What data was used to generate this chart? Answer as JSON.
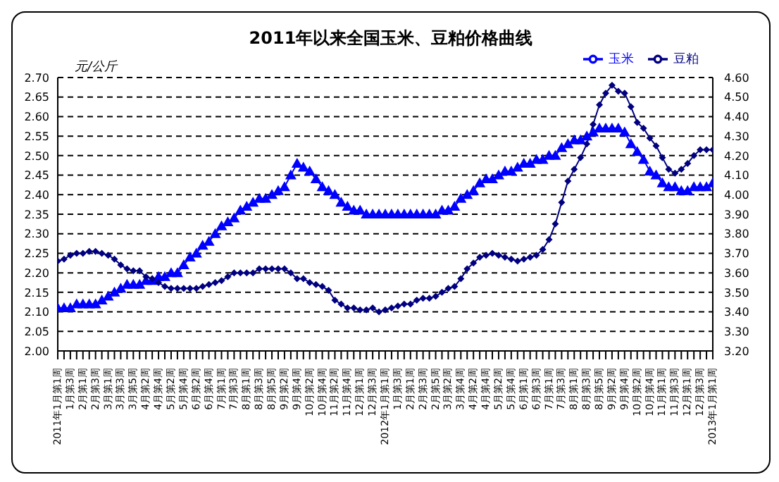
{
  "chart_data": {
    "type": "line",
    "title": "2011年以来全国玉米、豆粕价格曲线",
    "ylabel": "元/公斤",
    "categories": [
      "2011年1月第1周",
      null,
      "1月第3周",
      null,
      "2月第1周",
      null,
      "2月第3周",
      null,
      "3月第1周",
      null,
      "3月第3周",
      null,
      "3月第5周",
      null,
      "4月第2周",
      null,
      "4月第4周",
      null,
      "5月第2周",
      null,
      "5月第4周",
      null,
      "6月第2周",
      null,
      "6月第4周",
      null,
      "7月第1周",
      null,
      "7月第3周",
      null,
      "8月第1周",
      null,
      "8月第3周",
      null,
      "8月第5周",
      null,
      "9月第2周",
      null,
      "9月第4周",
      null,
      "10月第2周",
      null,
      "10月第4周",
      null,
      "11月第2周",
      null,
      "11月第4周",
      null,
      "12月第1周",
      null,
      "12月第3周",
      null,
      "2012年1月第1周",
      null,
      "1月第3周",
      null,
      "2月第1周",
      null,
      "2月第3周",
      null,
      "2月第5周",
      null,
      "3月第2周",
      null,
      "3月第4周",
      null,
      "4月第2周",
      null,
      "4月第4周",
      null,
      "5月第2周",
      null,
      "5月第4周",
      null,
      "6月第1周",
      null,
      "6月第3周",
      null,
      "7月第1周",
      null,
      "7月第3周",
      null,
      "8月第1周",
      null,
      "8月第3周",
      null,
      "8月第5周",
      null,
      "9月第2周",
      null,
      "9月第4周",
      null,
      "10月第2周",
      null,
      "10月第4周",
      null,
      "11月第1周",
      null,
      "11月第3周",
      null,
      "12月第1周",
      null,
      "12月第3周",
      null,
      "2013年1月第1周"
    ],
    "series": [
      {
        "name": "玉米",
        "color": "#0000ff",
        "marker": "triangle",
        "values": [
          2.11,
          2.11,
          2.11,
          2.12,
          2.12,
          2.12,
          2.12,
          2.13,
          2.14,
          2.15,
          2.16,
          2.17,
          2.17,
          2.17,
          2.18,
          2.18,
          2.19,
          2.19,
          2.2,
          2.2,
          2.22,
          2.24,
          2.25,
          2.27,
          2.28,
          2.3,
          2.32,
          2.33,
          2.34,
          2.36,
          2.37,
          2.38,
          2.39,
          2.39,
          2.4,
          2.41,
          2.42,
          2.45,
          2.48,
          2.47,
          2.46,
          2.44,
          2.42,
          2.41,
          2.4,
          2.38,
          2.37,
          2.36,
          2.36,
          2.35,
          2.35,
          2.35,
          2.35,
          2.35,
          2.35,
          2.35,
          2.35,
          2.35,
          2.35,
          2.35,
          2.35,
          2.36,
          2.36,
          2.37,
          2.39,
          2.4,
          2.41,
          2.43,
          2.44,
          2.44,
          2.45,
          2.46,
          2.46,
          2.47,
          2.48,
          2.48,
          2.49,
          2.49,
          2.5,
          2.5,
          2.52,
          2.53,
          2.54,
          2.54,
          2.55,
          2.56,
          2.57,
          2.57,
          2.57,
          2.57,
          2.56,
          2.53,
          2.51,
          2.49,
          2.46,
          2.45,
          2.43,
          2.42,
          2.42,
          2.41,
          2.41,
          2.42,
          2.42,
          2.42,
          2.43
        ]
      },
      {
        "name": "豆粕",
        "color": "#000080",
        "marker": "diamond",
        "axis": "y2",
        "values": [
          3.66,
          3.67,
          3.69,
          3.7,
          3.7,
          3.71,
          3.71,
          3.7,
          3.69,
          3.67,
          3.64,
          3.62,
          3.61,
          3.61,
          3.58,
          3.57,
          3.55,
          3.53,
          3.52,
          3.52,
          3.52,
          3.52,
          3.52,
          3.53,
          3.54,
          3.55,
          3.56,
          3.58,
          3.6,
          3.6,
          3.6,
          3.6,
          3.62,
          3.62,
          3.62,
          3.62,
          3.62,
          3.6,
          3.57,
          3.57,
          3.55,
          3.54,
          3.53,
          3.51,
          3.46,
          3.44,
          3.42,
          3.42,
          3.41,
          3.41,
          3.42,
          3.4,
          3.41,
          3.42,
          3.43,
          3.44,
          3.44,
          3.46,
          3.47,
          3.47,
          3.48,
          3.5,
          3.52,
          3.53,
          3.57,
          3.62,
          3.65,
          3.68,
          3.69,
          3.7,
          3.69,
          3.68,
          3.67,
          3.66,
          3.67,
          3.68,
          3.69,
          3.72,
          3.77,
          3.85,
          3.96,
          4.07,
          4.13,
          4.19,
          4.26,
          4.36,
          4.46,
          4.52,
          4.56,
          4.53,
          4.52,
          4.45,
          4.37,
          4.34,
          4.29,
          4.25,
          4.19,
          4.13,
          4.11,
          4.13,
          4.16,
          4.2,
          4.23,
          4.23,
          4.23
        ]
      }
    ],
    "ylim": [
      2.0,
      2.7
    ],
    "yticks": [
      {
        "value": 2.0,
        "label": "2.00"
      },
      {
        "value": 2.05,
        "label": "2.05"
      },
      {
        "value": 2.1,
        "label": "2.10"
      },
      {
        "value": 2.15,
        "label": "2.15"
      },
      {
        "value": 2.2,
        "label": "2.20"
      },
      {
        "value": 2.25,
        "label": "2.25"
      },
      {
        "value": 2.3,
        "label": "2.30"
      },
      {
        "value": 2.35,
        "label": "2.35"
      },
      {
        "value": 2.4,
        "label": "2.40"
      },
      {
        "value": 2.45,
        "label": "2.45"
      },
      {
        "value": 2.5,
        "label": "2.50"
      },
      {
        "value": 2.55,
        "label": "2.55"
      },
      {
        "value": 2.6,
        "label": "2.60"
      },
      {
        "value": 2.65,
        "label": "2.65"
      },
      {
        "value": 2.7,
        "label": "2.70"
      }
    ],
    "y2lim": [
      3.2,
      4.6
    ],
    "y2ticks": [
      {
        "value": 3.2,
        "label": "3.20"
      },
      {
        "value": 3.3,
        "label": "3.30"
      },
      {
        "value": 3.4,
        "label": "3.40"
      },
      {
        "value": 3.5,
        "label": "3.50"
      },
      {
        "value": 3.6,
        "label": "3.60"
      },
      {
        "value": 3.7,
        "label": "3.70"
      },
      {
        "value": 3.8,
        "label": "3.80"
      },
      {
        "value": 3.9,
        "label": "3.90"
      },
      {
        "value": 4.0,
        "label": "4.00"
      },
      {
        "value": 4.1,
        "label": "4.10"
      },
      {
        "value": 4.2,
        "label": "4.20"
      },
      {
        "value": 4.3,
        "label": "4.30"
      },
      {
        "value": 4.4,
        "label": "4.40"
      },
      {
        "value": 4.5,
        "label": "4.50"
      },
      {
        "value": 4.6,
        "label": "4.60"
      }
    ],
    "grid": "y",
    "legend": "top right",
    "line_style": "solid"
  }
}
